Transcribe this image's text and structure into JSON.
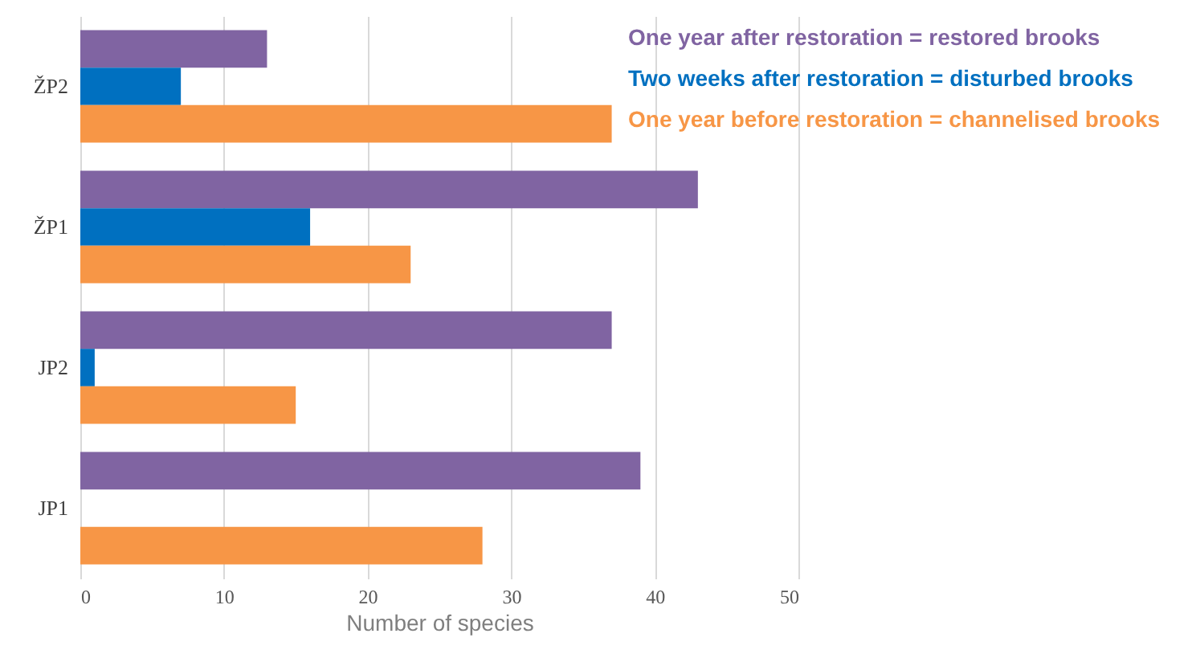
{
  "chart_data": {
    "type": "bar",
    "orientation": "horizontal",
    "xlabel": "Number of species",
    "categories": [
      "ŽP2",
      "ŽP1",
      "JP2",
      "JP1"
    ],
    "series": [
      {
        "name": "One year after restoration = restored brooks",
        "color": "#8064a2",
        "values": [
          13,
          43,
          37,
          39
        ]
      },
      {
        "name": "Two weeks after restoration = disturbed brooks",
        "color": "#0070c0",
        "values": [
          7,
          16,
          1,
          null
        ]
      },
      {
        "name": "One year before restoration = channelised brooks",
        "color": "#f79646",
        "values": [
          37,
          23,
          15,
          28
        ]
      }
    ],
    "xlim": [
      0,
      50
    ],
    "xticks": [
      0,
      10,
      20,
      30,
      40,
      50
    ],
    "grid": "x",
    "legend": "top right"
  }
}
